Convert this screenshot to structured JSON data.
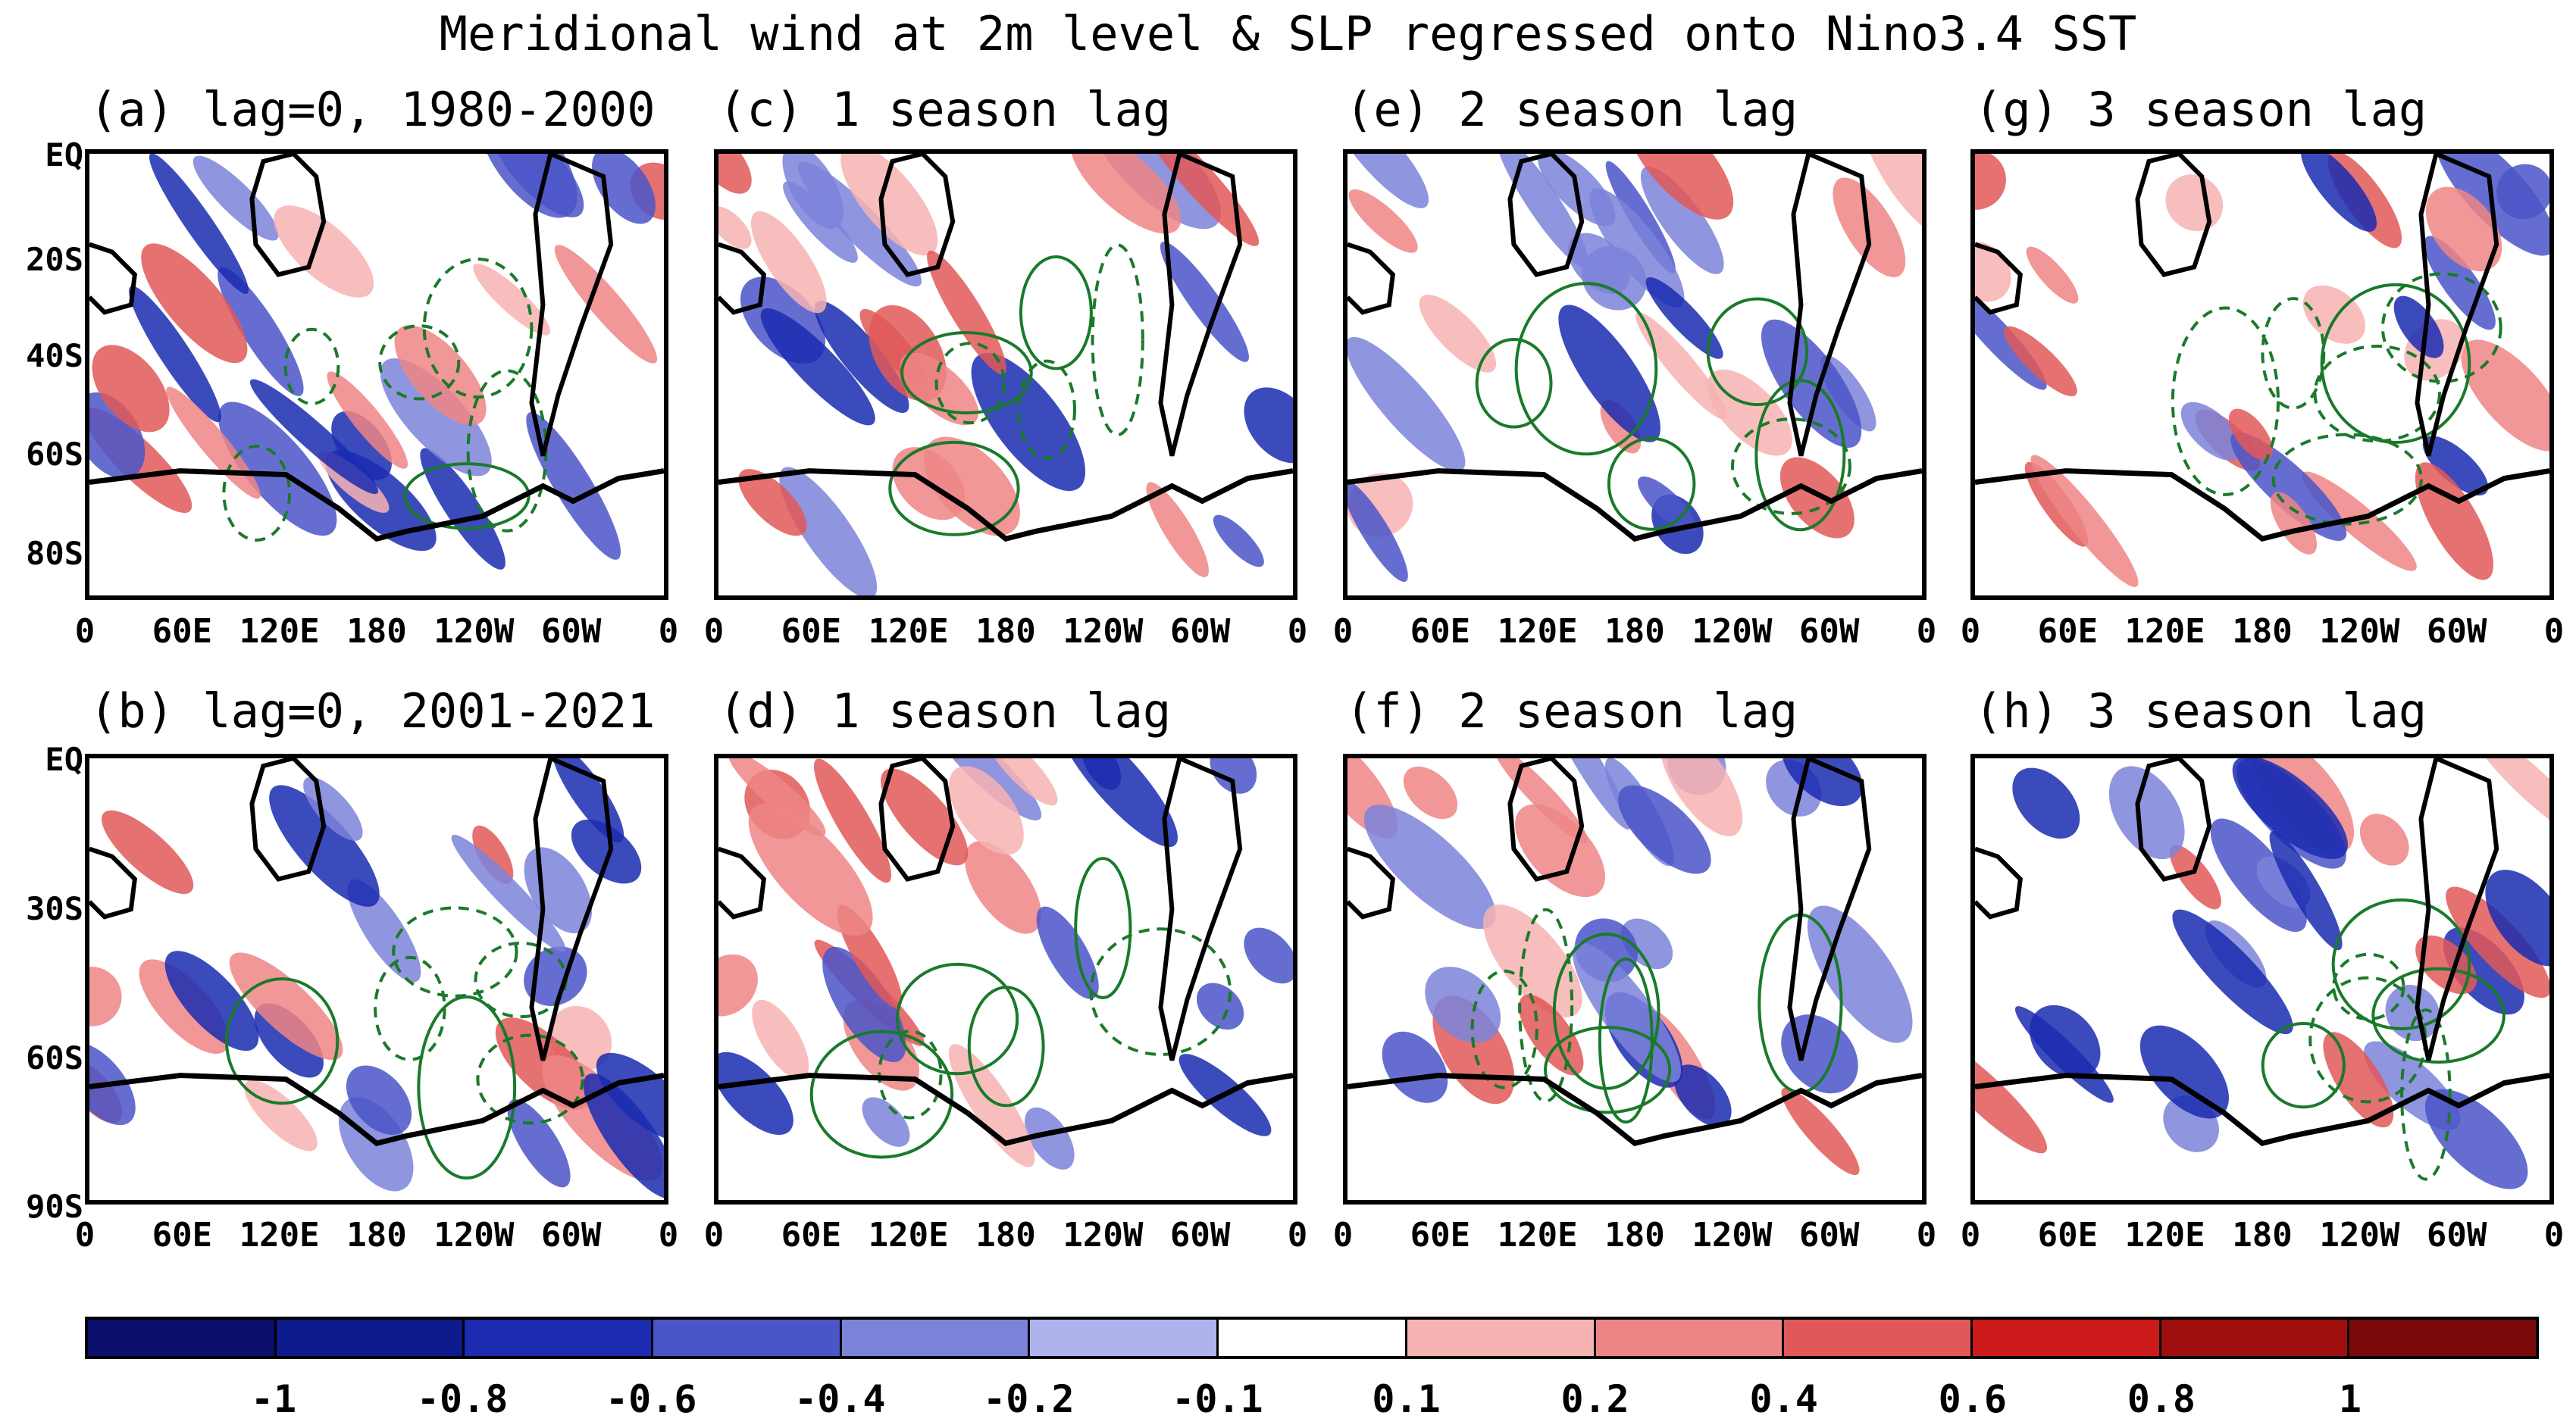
{
  "title": "Meridional wind at 2m level & SLP regressed onto Nino3.4 SST",
  "x_tick_labels": [
    "0",
    "60E",
    "120E",
    "180",
    "120W",
    "60W",
    "0"
  ],
  "y_tick_labels_top": [
    "EQ",
    "20S",
    "40S",
    "60S",
    "80S"
  ],
  "y_tick_labels_bottom": [
    "EQ",
    "30S",
    "60S",
    "90S"
  ],
  "panels": [
    {
      "id": "a",
      "title": "(a) lag=0, 1980-2000"
    },
    {
      "id": "c",
      "title": "(c) 1 season lag"
    },
    {
      "id": "e",
      "title": "(e) 2 season lag"
    },
    {
      "id": "g",
      "title": "(g) 3 season lag"
    },
    {
      "id": "b",
      "title": "(b) lag=0, 2001-2021"
    },
    {
      "id": "d",
      "title": "(d) 1 season lag"
    },
    {
      "id": "f",
      "title": "(f) 2 season lag"
    },
    {
      "id": "h",
      "title": "(h) 3 season lag"
    }
  ],
  "colorbar": {
    "labels": [
      "-1",
      "-0.8",
      "-0.6",
      "-0.4",
      "-0.2",
      "-0.1",
      "0.1",
      "0.2",
      "0.4",
      "0.6",
      "0.8",
      "1"
    ],
    "colors": [
      "#0a0f6e",
      "#0d1a8c",
      "#1a2bb0",
      "#4a55c8",
      "#7b83d9",
      "#aeb3ec",
      "#ffffff",
      "#f7b3b3",
      "#ee8585",
      "#e05858",
      "#cc1a1a",
      "#a00f0f",
      "#7a0a0a"
    ]
  },
  "colors": {
    "contour": "#1a7a2a",
    "land_outline": "#000000"
  }
}
